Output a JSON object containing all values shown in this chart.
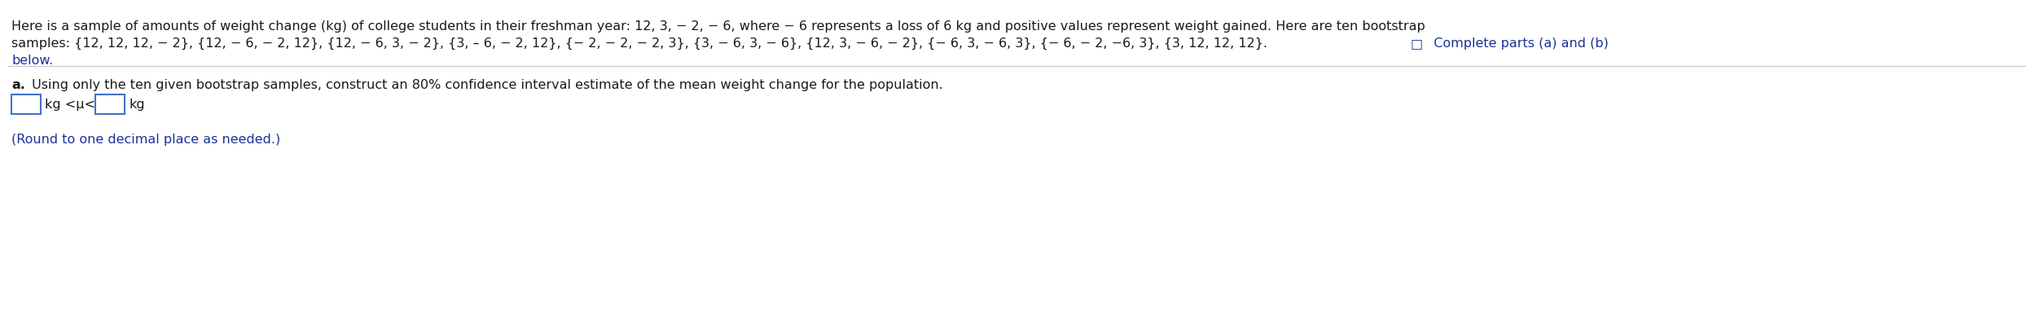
{
  "line1": "Here is a sample of amounts of weight change (kg) of college students in their freshman year: 12, 3, − 2, − 6, where − 6 represents a loss of 6 kg and positive values represent weight gained. Here are ten bootstrap",
  "line2_black": "samples: {12, 12, 12, − 2}, {12, − 6, − 2, 12}, {12, − 6, 3, − 2}, {3, – 6, − 2, 12}, {− 2, − 2, − 2, 3}, {3, − 6, 3, − 6}, {12, 3, − 6, − 2}, {− 6, 3, − 6, 3}, {− 6, − 2, −6, 3}, {3, 12, 12, 12}.",
  "line2_blue_icon": "□",
  "line2_blue": "  Complete parts (a) and (b)",
  "line3": "below.",
  "part_a_bold": "a.",
  "part_a_rest": " Using only the ten given bootstrap samples, construct an 80% confidence interval estimate of the mean weight change for the population.",
  "footnote": "(Round to one decimal place as needed.)",
  "kg_mu_kg": "kg <μ<",
  "kg2": "kg",
  "bg_color": "#ffffff",
  "text_color": "#1a1a1a",
  "blue_color": "#1a3399",
  "box_color": "#4472c4",
  "separator_color": "#cccccc",
  "fs": 11.5,
  "fs_footnote": 11.5
}
